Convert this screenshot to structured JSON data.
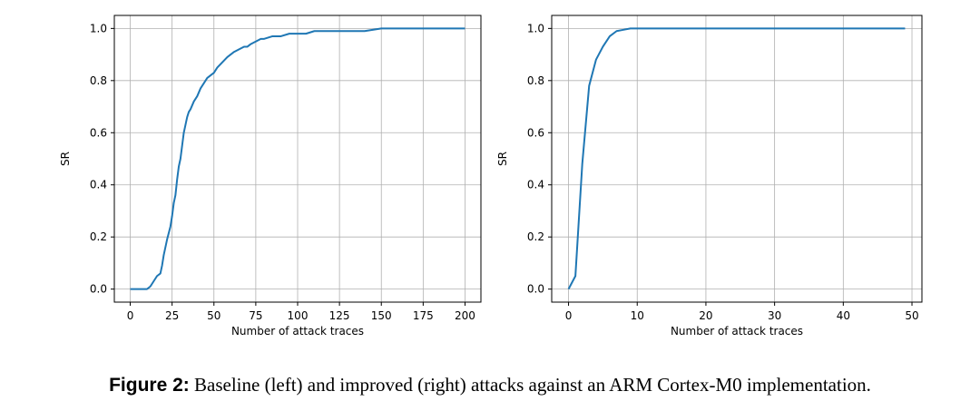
{
  "colors": {
    "series": "#1f77b4",
    "grid": "#b0b0b0",
    "axes": "#000000"
  },
  "caption": {
    "label": "Figure 2:",
    "text": " Baseline (left) and improved (right) attacks against an ARM Cortex-M0 implementation."
  },
  "chart_data": [
    {
      "type": "line",
      "title": "",
      "xlabel": "Number of attack traces",
      "ylabel": "SR",
      "xlim": [
        -9.5,
        209.5
      ],
      "ylim": [
        -0.05,
        1.05
      ],
      "xticks": [
        0,
        25,
        50,
        75,
        100,
        125,
        150,
        175,
        200
      ],
      "yticks": [
        0.0,
        0.2,
        0.4,
        0.6,
        0.8,
        1.0
      ],
      "ytick_labels": [
        "0.0",
        "0.2",
        "0.4",
        "0.6",
        "0.8",
        "1.0"
      ],
      "grid": true,
      "series": [
        {
          "x": [
            0,
            5,
            10,
            12,
            14,
            16,
            18,
            19,
            20,
            22,
            24,
            25,
            26,
            27,
            28,
            29,
            30,
            31,
            32,
            33,
            34,
            35,
            36,
            38,
            40,
            42,
            44,
            46,
            48,
            50,
            52,
            55,
            58,
            60,
            62,
            65,
            68,
            70,
            72,
            75,
            78,
            80,
            85,
            90,
            95,
            100,
            105,
            110,
            115,
            120,
            125,
            130,
            140,
            150,
            160,
            170,
            180,
            190,
            200
          ],
          "y": [
            0.0,
            0.0,
            0.0,
            0.01,
            0.03,
            0.05,
            0.06,
            0.09,
            0.13,
            0.19,
            0.24,
            0.28,
            0.33,
            0.36,
            0.42,
            0.47,
            0.5,
            0.55,
            0.6,
            0.63,
            0.66,
            0.68,
            0.69,
            0.72,
            0.74,
            0.77,
            0.79,
            0.81,
            0.82,
            0.83,
            0.85,
            0.87,
            0.89,
            0.9,
            0.91,
            0.92,
            0.93,
            0.93,
            0.94,
            0.95,
            0.96,
            0.96,
            0.97,
            0.97,
            0.98,
            0.98,
            0.98,
            0.99,
            0.99,
            0.99,
            0.99,
            0.99,
            0.99,
            1.0,
            1.0,
            1.0,
            1.0,
            1.0,
            1.0
          ]
        }
      ]
    },
    {
      "type": "line",
      "title": "",
      "xlabel": "Number of attack traces",
      "ylabel": "SR",
      "xlim": [
        -2.45,
        51.45
      ],
      "ylim": [
        -0.05,
        1.05
      ],
      "xticks": [
        0,
        10,
        20,
        30,
        40,
        50
      ],
      "yticks": [
        0.0,
        0.2,
        0.4,
        0.6,
        0.8,
        1.0
      ],
      "ytick_labels": [
        "0.0",
        "0.2",
        "0.4",
        "0.6",
        "0.8",
        "1.0"
      ],
      "grid": true,
      "series": [
        {
          "x": [
            0,
            1,
            2,
            3,
            4,
            5,
            6,
            7,
            8,
            9,
            10,
            15,
            20,
            25,
            30,
            35,
            40,
            45,
            49
          ],
          "y": [
            0.0,
            0.05,
            0.48,
            0.78,
            0.88,
            0.93,
            0.97,
            0.99,
            0.995,
            1.0,
            1.0,
            1.0,
            1.0,
            1.0,
            1.0,
            1.0,
            1.0,
            1.0,
            1.0
          ]
        }
      ]
    }
  ]
}
